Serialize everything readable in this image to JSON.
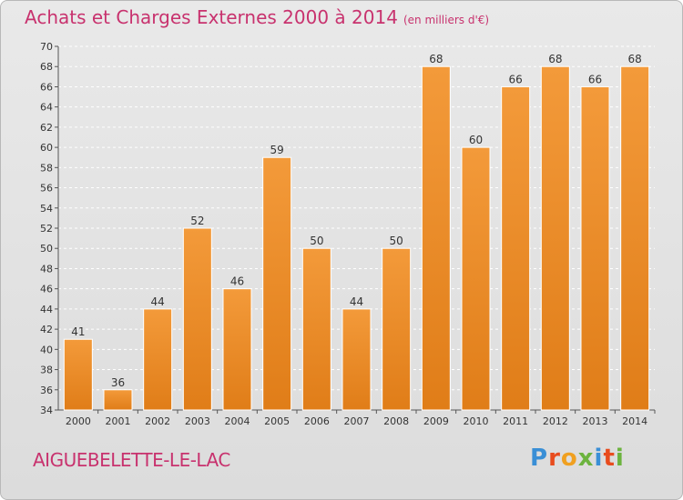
{
  "title": "Achats et Charges Externes 2000 à 2014",
  "unit": "(en milliers d'€)",
  "location": "AIGUEBELETTE-LE-LAC",
  "logo": "Proxiti",
  "logo_colors": [
    "#3a8fd6",
    "#e84c1e",
    "#f0a020",
    "#6cb33e",
    "#3a8fd6",
    "#e84c1e",
    "#6cb33e"
  ],
  "colors": {
    "bar": "#f39a3a",
    "bar_dark": "#e07d18",
    "title": "#c8326e",
    "grid": "#ffffff"
  },
  "chart_data": {
    "type": "bar",
    "categories": [
      "2000",
      "2001",
      "2002",
      "2003",
      "2004",
      "2005",
      "2006",
      "2007",
      "2008",
      "2009",
      "2010",
      "2011",
      "2012",
      "2013",
      "2014"
    ],
    "values": [
      41,
      36,
      44,
      52,
      46,
      59,
      50,
      44,
      50,
      68,
      60,
      66,
      68,
      66,
      68
    ],
    "ylim": [
      34,
      70
    ],
    "yticks": [
      34,
      36,
      38,
      40,
      42,
      44,
      46,
      48,
      50,
      52,
      54,
      56,
      58,
      60,
      62,
      64,
      66,
      68,
      70
    ],
    "grid": true,
    "data_labels": true
  }
}
